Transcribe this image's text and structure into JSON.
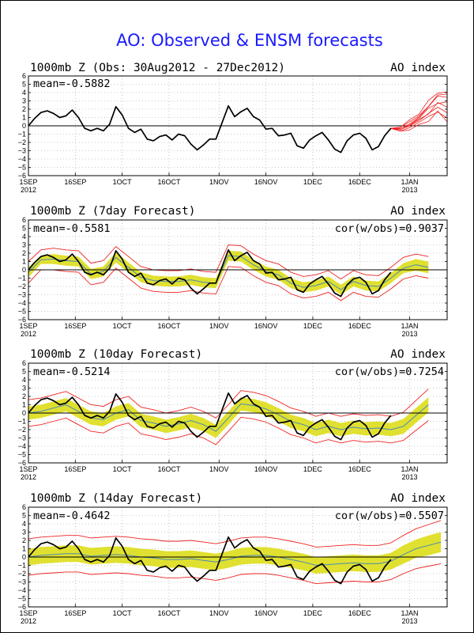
{
  "figure_title": "AO: Observed & ENSM forecasts",
  "colors": {
    "title": "#1a1aff",
    "observed": "#000000",
    "ensemble_members": "#ee2222",
    "ensemble_spread": "#e0e030",
    "ensemble_mean": "#4a8ab0",
    "zero_line": "#000000",
    "grid": "#999999"
  },
  "panels": [
    {
      "title": "1000mb Z (Obs: 30Aug2012 - 27Dec2012)",
      "right_label": "AO index",
      "mean_label": "mean=-0.5882",
      "cor_label": ""
    },
    {
      "title": "1000mb Z (7day Forecast)",
      "right_label": "AO index",
      "mean_label": "mean=-0.5581",
      "cor_label": "cor(w/obs)=0.9037"
    },
    {
      "title": "1000mb Z (10day Forecast)",
      "right_label": "AO index",
      "mean_label": "mean=-0.5214",
      "cor_label": "cor(w/obs)=0.7254"
    },
    {
      "title": "1000mb Z (14day Forecast)",
      "right_label": "AO index",
      "mean_label": "mean=-0.4642",
      "cor_label": "cor(w/obs)=0.5507"
    }
  ],
  "chart_data": [
    {
      "type": "line",
      "title": "1000mb Z (Obs: 30Aug2012 - 27Dec2012)",
      "ylim": [
        -6,
        6
      ],
      "yticks": [
        -6,
        -5,
        -4,
        -3,
        -2,
        -1,
        0,
        1,
        2,
        3,
        4,
        5,
        6
      ],
      "x_ticks": [
        {
          "day": 1,
          "label": "1SEP",
          "sub": "2012"
        },
        {
          "day": 16,
          "label": "16SEP",
          "sub": ""
        },
        {
          "day": 31,
          "label": "1OCT",
          "sub": ""
        },
        {
          "day": 46,
          "label": "16OCT",
          "sub": ""
        },
        {
          "day": 62,
          "label": "1NOV",
          "sub": ""
        },
        {
          "day": 77,
          "label": "16NOV",
          "sub": ""
        },
        {
          "day": 92,
          "label": "1DEC",
          "sub": ""
        },
        {
          "day": 107,
          "label": "16DEC",
          "sub": ""
        },
        {
          "day": 123,
          "label": "1JAN",
          "sub": "2013"
        }
      ],
      "xlim": [
        1,
        135
      ],
      "grid": true,
      "series": [
        {
          "role": "observed",
          "x": [
            1,
            3,
            5,
            7,
            9,
            11,
            13,
            15,
            17,
            19,
            21,
            23,
            25,
            27,
            29,
            31,
            33,
            35,
            37,
            39,
            41,
            43,
            45,
            47,
            49,
            51,
            53,
            55,
            57,
            59,
            61,
            63,
            65,
            67,
            69,
            71,
            73,
            75,
            77,
            79,
            81,
            83,
            85,
            87,
            89,
            91,
            93,
            95,
            97,
            99,
            101,
            103,
            105,
            107,
            109,
            111,
            113,
            115,
            117
          ],
          "values": [
            0.0,
            0.9,
            1.6,
            1.8,
            1.5,
            1.0,
            1.2,
            1.9,
            1.0,
            -0.3,
            -0.6,
            -0.3,
            -0.6,
            0.2,
            2.3,
            1.3,
            -0.3,
            -0.8,
            -0.4,
            -1.6,
            -1.8,
            -1.3,
            -1.1,
            -1.7,
            -1.0,
            -1.2,
            -2.2,
            -2.9,
            -2.3,
            -1.6,
            -1.6,
            0.4,
            2.4,
            1.1,
            1.7,
            2.1,
            1.1,
            0.7,
            -0.4,
            -0.3,
            -1.2,
            -1.1,
            -0.9,
            -2.4,
            -2.7,
            -1.7,
            -1.2,
            -0.8,
            -1.7,
            -2.8,
            -3.2,
            -1.8,
            -1.1,
            -0.9,
            -1.5,
            -2.9,
            -2.5,
            -1.2,
            -0.3
          ]
        },
        {
          "role": "ensemble_members",
          "count": 8,
          "x": [
            117,
            120,
            123,
            126,
            129,
            132,
            135
          ],
          "values": [
            -0.3,
            -0.4,
            0.1,
            0.8,
            1.8,
            2.8,
            2.4
          ]
        }
      ]
    },
    {
      "type": "line",
      "title": "1000mb Z (7day Forecast)",
      "ylim": [
        -6,
        6
      ],
      "grid": true,
      "series": [
        {
          "role": "observed",
          "x": [
            1,
            3,
            5,
            7,
            9,
            11,
            13,
            15,
            17,
            19,
            21,
            23,
            25,
            27,
            29,
            31,
            33,
            35,
            37,
            39,
            41,
            43,
            45,
            47,
            49,
            51,
            53,
            55,
            57,
            59,
            61,
            63,
            65,
            67,
            69,
            71,
            73,
            75,
            77,
            79,
            81,
            83,
            85,
            87,
            89,
            91,
            93,
            95,
            97,
            99,
            101,
            103,
            105,
            107,
            109,
            111,
            113,
            115,
            117
          ],
          "values": [
            0.0,
            0.9,
            1.6,
            1.8,
            1.5,
            1.0,
            1.2,
            1.9,
            1.0,
            -0.3,
            -0.6,
            -0.3,
            -0.6,
            0.2,
            2.3,
            1.3,
            -0.3,
            -0.8,
            -0.4,
            -1.6,
            -1.8,
            -1.3,
            -1.1,
            -1.7,
            -1.0,
            -1.2,
            -2.2,
            -2.9,
            -2.3,
            -1.6,
            -1.6,
            0.4,
            2.4,
            1.1,
            1.7,
            2.1,
            1.1,
            0.7,
            -0.4,
            -0.3,
            -1.2,
            -1.1,
            -0.9,
            -2.4,
            -2.7,
            -1.7,
            -1.2,
            -0.8,
            -1.7,
            -2.8,
            -3.2,
            -1.8,
            -1.1,
            -0.9,
            -1.5,
            -2.9,
            -2.5,
            -1.2,
            -0.3
          ]
        },
        {
          "role": "ensemble_mean",
          "x": [
            1,
            5,
            9,
            13,
            17,
            21,
            25,
            29,
            33,
            37,
            41,
            45,
            49,
            53,
            57,
            61,
            65,
            69,
            73,
            77,
            81,
            85,
            89,
            93,
            97,
            101,
            105,
            109,
            113,
            117,
            121,
            125,
            129
          ],
          "values": [
            -0.3,
            1.2,
            1.3,
            1.1,
            1.0,
            -0.5,
            -0.2,
            1.5,
            0.3,
            -0.9,
            -1.3,
            -1.4,
            -1.4,
            -1.2,
            -1.5,
            -1.6,
            1.7,
            1.6,
            0.6,
            -0.2,
            -0.6,
            -1.6,
            -2.1,
            -1.9,
            -1.4,
            -2.4,
            -1.4,
            -1.9,
            -2.0,
            -1.0,
            0.2,
            0.6,
            0.3
          ]
        },
        {
          "role": "ensemble_spread_half_width",
          "values": [
            0.6,
            0.5,
            0.6,
            0.6,
            0.6,
            0.6,
            0.6,
            0.6,
            0.6,
            0.6,
            0.6,
            0.6,
            0.6,
            0.6,
            0.6,
            0.6,
            0.6,
            0.6,
            0.6,
            0.6,
            0.6,
            0.6,
            0.6,
            0.6,
            0.6,
            0.6,
            0.6,
            0.6,
            0.6,
            0.6,
            0.6,
            0.7,
            0.7
          ]
        },
        {
          "role": "ensemble_envelope_half_width",
          "values": [
            1.3,
            1.2,
            1.3,
            1.3,
            1.3,
            1.3,
            1.3,
            1.3,
            1.3,
            1.3,
            1.3,
            1.3,
            1.3,
            1.3,
            1.3,
            1.3,
            1.3,
            1.3,
            1.3,
            1.3,
            1.3,
            1.3,
            1.3,
            1.3,
            1.3,
            1.3,
            1.3,
            1.3,
            1.3,
            1.3,
            1.3,
            1.3,
            1.3
          ]
        }
      ]
    },
    {
      "type": "line",
      "title": "1000mb Z (10day Forecast)",
      "ylim": [
        -6,
        6
      ],
      "grid": true,
      "series": [
        {
          "role": "observed",
          "x": [
            1,
            3,
            5,
            7,
            9,
            11,
            13,
            15,
            17,
            19,
            21,
            23,
            25,
            27,
            29,
            31,
            33,
            35,
            37,
            39,
            41,
            43,
            45,
            47,
            49,
            51,
            53,
            55,
            57,
            59,
            61,
            63,
            65,
            67,
            69,
            71,
            73,
            75,
            77,
            79,
            81,
            83,
            85,
            87,
            89,
            91,
            93,
            95,
            97,
            99,
            101,
            103,
            105,
            107,
            109,
            111,
            113,
            115,
            117
          ],
          "values": [
            0.0,
            0.9,
            1.6,
            1.8,
            1.5,
            1.0,
            1.2,
            1.9,
            1.0,
            -0.3,
            -0.6,
            -0.3,
            -0.6,
            0.2,
            2.3,
            1.3,
            -0.3,
            -0.8,
            -0.4,
            -1.6,
            -1.8,
            -1.3,
            -1.1,
            -1.7,
            -1.0,
            -1.2,
            -2.2,
            -2.9,
            -2.3,
            -1.6,
            -1.6,
            0.4,
            2.4,
            1.1,
            1.7,
            2.1,
            1.1,
            0.7,
            -0.4,
            -0.3,
            -1.2,
            -1.1,
            -0.9,
            -2.4,
            -2.7,
            -1.7,
            -1.2,
            -0.8,
            -1.7,
            -2.8,
            -3.2,
            -1.8,
            -1.1,
            -0.9,
            -1.5,
            -2.9,
            -2.5,
            -1.2,
            -0.3
          ]
        },
        {
          "role": "ensemble_mean",
          "x": [
            1,
            5,
            9,
            13,
            17,
            21,
            25,
            29,
            33,
            37,
            41,
            45,
            49,
            53,
            57,
            61,
            65,
            69,
            73,
            77,
            81,
            85,
            89,
            93,
            97,
            101,
            105,
            109,
            113,
            117,
            121,
            125,
            129
          ],
          "values": [
            0.0,
            0.2,
            0.6,
            1.0,
            0.2,
            -0.6,
            -0.8,
            0.0,
            0.4,
            -0.9,
            -1.2,
            -1.6,
            -1.3,
            -0.9,
            -1.4,
            -2.2,
            -0.6,
            1.1,
            0.9,
            0.5,
            -0.2,
            -1.0,
            -1.4,
            -2.0,
            -1.6,
            -2.0,
            -1.7,
            -1.9,
            -1.8,
            -2.0,
            -1.6,
            -0.3,
            1.0
          ]
        },
        {
          "role": "ensemble_spread_half_width",
          "values": [
            0.8,
            0.8,
            0.8,
            0.8,
            0.8,
            0.8,
            0.8,
            0.8,
            0.8,
            0.8,
            0.8,
            0.8,
            0.8,
            0.8,
            0.8,
            0.8,
            0.8,
            0.8,
            0.8,
            0.8,
            0.8,
            0.8,
            0.8,
            0.8,
            0.8,
            0.8,
            0.8,
            0.8,
            0.8,
            0.8,
            0.9,
            0.9,
            0.9
          ]
        },
        {
          "role": "ensemble_envelope_half_width",
          "values": [
            1.6,
            1.6,
            1.6,
            1.6,
            1.6,
            1.6,
            1.6,
            1.6,
            1.6,
            1.6,
            1.6,
            1.6,
            1.6,
            1.6,
            1.6,
            1.6,
            1.6,
            1.6,
            1.6,
            1.6,
            1.6,
            1.6,
            1.6,
            1.6,
            1.6,
            1.6,
            1.6,
            1.6,
            1.6,
            1.6,
            1.7,
            1.8,
            1.9
          ]
        }
      ]
    },
    {
      "type": "line",
      "title": "1000mb Z (14day Forecast)",
      "ylim": [
        -6,
        6
      ],
      "grid": true,
      "series": [
        {
          "role": "observed",
          "x": [
            1,
            3,
            5,
            7,
            9,
            11,
            13,
            15,
            17,
            19,
            21,
            23,
            25,
            27,
            29,
            31,
            33,
            35,
            37,
            39,
            41,
            43,
            45,
            47,
            49,
            51,
            53,
            55,
            57,
            59,
            61,
            63,
            65,
            67,
            69,
            71,
            73,
            75,
            77,
            79,
            81,
            83,
            85,
            87,
            89,
            91,
            93,
            95,
            97,
            99,
            101,
            103,
            105,
            107,
            109,
            111,
            113,
            115,
            117
          ],
          "values": [
            0.0,
            0.9,
            1.6,
            1.8,
            1.5,
            1.0,
            1.2,
            1.9,
            1.0,
            -0.3,
            -0.6,
            -0.3,
            -0.6,
            0.2,
            2.3,
            1.3,
            -0.3,
            -0.8,
            -0.4,
            -1.6,
            -1.8,
            -1.3,
            -1.1,
            -1.7,
            -1.0,
            -1.2,
            -2.2,
            -2.9,
            -2.3,
            -1.6,
            -1.6,
            0.4,
            2.4,
            1.1,
            1.7,
            2.1,
            1.1,
            0.7,
            -0.4,
            -0.3,
            -1.2,
            -1.1,
            -0.9,
            -2.4,
            -2.7,
            -1.7,
            -1.2,
            -0.8,
            -1.7,
            -2.8,
            -3.2,
            -1.8,
            -1.1,
            -0.9,
            -1.5,
            -2.9,
            -2.5,
            -1.2,
            -0.3
          ]
        },
        {
          "role": "ensemble_mean",
          "x": [
            1,
            5,
            9,
            13,
            17,
            21,
            25,
            29,
            33,
            37,
            41,
            45,
            49,
            53,
            57,
            61,
            65,
            69,
            73,
            77,
            81,
            85,
            89,
            93,
            97,
            101,
            105,
            109,
            113,
            117,
            121,
            125,
            129,
            133
          ],
          "values": [
            0.0,
            0.2,
            0.3,
            0.4,
            0.4,
            0.1,
            0.2,
            0.3,
            0.2,
            0.0,
            -0.1,
            -0.3,
            -0.3,
            -0.2,
            -0.4,
            -0.6,
            -0.3,
            0.1,
            0.2,
            0.2,
            0.0,
            -0.3,
            -0.6,
            -1.0,
            -0.9,
            -0.8,
            -0.7,
            -0.8,
            -0.8,
            -0.5,
            0.3,
            1.0,
            1.4,
            1.8
          ]
        },
        {
          "role": "ensemble_spread_half_width",
          "values": [
            1.0,
            1.0,
            1.0,
            1.0,
            1.0,
            1.0,
            1.0,
            1.0,
            1.0,
            1.0,
            1.0,
            1.0,
            1.0,
            1.0,
            1.0,
            1.0,
            1.0,
            1.0,
            1.0,
            1.0,
            1.0,
            1.0,
            1.0,
            1.0,
            1.0,
            1.0,
            1.0,
            1.0,
            1.0,
            1.0,
            1.1,
            1.1,
            1.2,
            1.2
          ]
        },
        {
          "role": "ensemble_envelope_half_width",
          "values": [
            2.2,
            2.2,
            2.2,
            2.2,
            2.2,
            2.2,
            2.2,
            2.2,
            2.2,
            2.2,
            2.2,
            2.2,
            2.2,
            2.2,
            2.2,
            2.2,
            2.2,
            2.2,
            2.2,
            2.2,
            2.2,
            2.2,
            2.2,
            2.2,
            2.2,
            2.2,
            2.2,
            2.2,
            2.2,
            2.2,
            2.3,
            2.4,
            2.5,
            2.6
          ]
        }
      ]
    }
  ]
}
